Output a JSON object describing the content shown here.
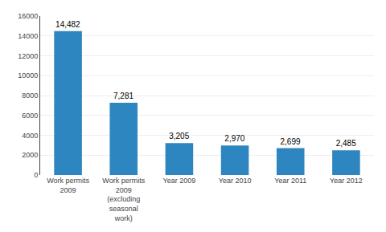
{
  "chart_data": {
    "type": "bar",
    "categories": [
      "Work permits\n2009",
      "Work permits\n2009\n(excluding\nseasonal\nwork)",
      "Year 2009",
      "Year 2010",
      "Year 2011",
      "Year 2012"
    ],
    "values": [
      14482,
      7281,
      3205,
      2970,
      2699,
      2485
    ],
    "value_labels": [
      "14,482",
      "7,281",
      "3,205",
      "2,970",
      "2,699",
      "2,485"
    ],
    "data_labels": true,
    "color": "#2e86c0",
    "ylim": [
      0,
      16000
    ],
    "yticks": [
      0,
      2000,
      4000,
      6000,
      8000,
      10000,
      12000,
      14000,
      16000
    ],
    "grid": true
  }
}
